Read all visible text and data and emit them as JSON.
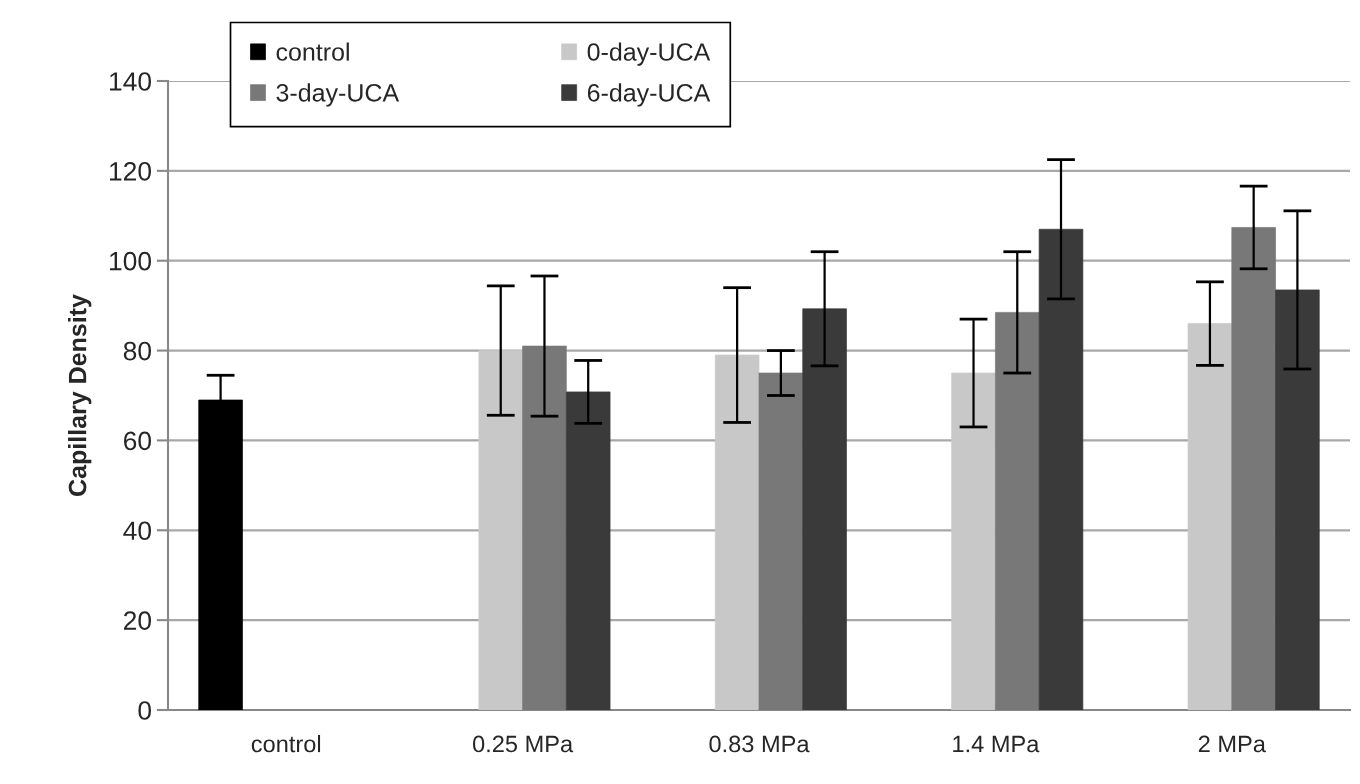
{
  "chart_data": {
    "type": "bar",
    "ylabel": "Capillary Density",
    "categories": [
      "control",
      "0.25 MPa",
      "0.83 MPa",
      "1.4 MPa",
      "2 MPa"
    ],
    "series": [
      {
        "name": "control",
        "color": "#000000",
        "values": [
          69,
          null,
          null,
          null,
          null
        ],
        "errors": [
          5.5,
          null,
          null,
          null,
          null
        ]
      },
      {
        "name": "0-day-UCA",
        "color": "#c8c8c8",
        "values": [
          null,
          80,
          79,
          75,
          86
        ],
        "errors": [
          null,
          14.4,
          15,
          12,
          9.3
        ]
      },
      {
        "name": "3-day-UCA",
        "color": "#787878",
        "values": [
          null,
          81,
          75,
          88.5,
          107.4
        ],
        "errors": [
          null,
          15.6,
          5,
          13.5,
          9.2
        ]
      },
      {
        "name": "6-day-UCA",
        "color": "#3a3a3a",
        "values": [
          null,
          70.8,
          89.3,
          107,
          93.5
        ],
        "errors": [
          null,
          7,
          12.7,
          15.5,
          17.6
        ]
      }
    ],
    "ylim": [
      0,
      140
    ],
    "yticks": [
      0,
      20,
      40,
      60,
      80,
      100,
      120,
      140
    ],
    "grid": "y",
    "legend": "top left"
  }
}
